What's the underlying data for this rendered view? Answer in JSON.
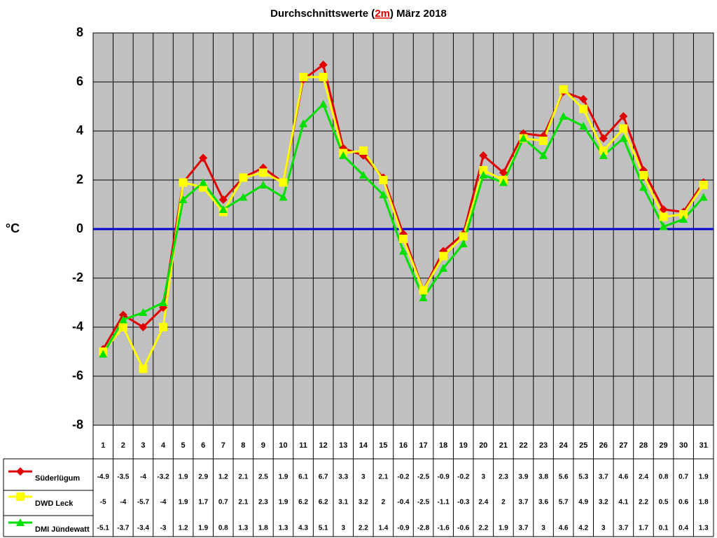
{
  "chart_data": {
    "type": "line",
    "title": [
      "Durchschnittswerte (",
      "2m",
      ") März 2018"
    ],
    "y_label": "°C",
    "categories": [
      "1",
      "2",
      "3",
      "4",
      "5",
      "6",
      "7",
      "8",
      "9",
      "10",
      "11",
      "12",
      "13",
      "14",
      "15",
      "16",
      "17",
      "18",
      "19",
      "20",
      "21",
      "22",
      "23",
      "24",
      "25",
      "26",
      "27",
      "28",
      "29",
      "30",
      "31"
    ],
    "series": [
      {
        "name": "Süderlügum",
        "color": "#e00000",
        "marker": "diamond",
        "values": [
          -4.9,
          -3.5,
          -4,
          -3.2,
          1.9,
          2.9,
          1.2,
          2.1,
          2.5,
          1.9,
          6.1,
          6.7,
          3.3,
          3,
          2.1,
          -0.2,
          -2.5,
          -0.9,
          -0.2,
          3,
          2.3,
          3.9,
          3.8,
          5.6,
          5.3,
          3.7,
          4.6,
          2.4,
          0.8,
          0.7,
          1.9
        ]
      },
      {
        "name": "DWD Leck",
        "color": "#ffff00",
        "marker": "square",
        "values": [
          -5,
          -4,
          -5.7,
          -4,
          1.9,
          1.7,
          0.7,
          2.1,
          2.3,
          1.9,
          6.2,
          6.2,
          3.1,
          3.2,
          2,
          -0.4,
          -2.5,
          -1.1,
          -0.3,
          2.4,
          2,
          3.7,
          3.6,
          5.7,
          4.9,
          3.2,
          4.1,
          2.2,
          0.5,
          0.6,
          1.8
        ]
      },
      {
        "name": "DMI Jündewatt",
        "color": "#00e000",
        "marker": "triangle",
        "values": [
          -5.1,
          -3.7,
          -3.4,
          -3,
          1.2,
          1.9,
          0.8,
          1.3,
          1.8,
          1.3,
          4.3,
          5.1,
          3,
          2.2,
          1.4,
          -0.9,
          -2.8,
          -1.6,
          -0.6,
          2.2,
          1.9,
          3.7,
          3,
          4.6,
          4.2,
          3,
          3.7,
          1.7,
          0.1,
          0.4,
          1.3
        ]
      }
    ],
    "ylim": [
      -8,
      8
    ],
    "yticks": [
      -8,
      -6,
      -4,
      -2,
      0,
      2,
      4,
      6,
      8
    ],
    "grid": true,
    "hline": {
      "value": 0,
      "color": "#0000cc"
    },
    "plot_background": "#c0c0c0",
    "data_table": true
  }
}
